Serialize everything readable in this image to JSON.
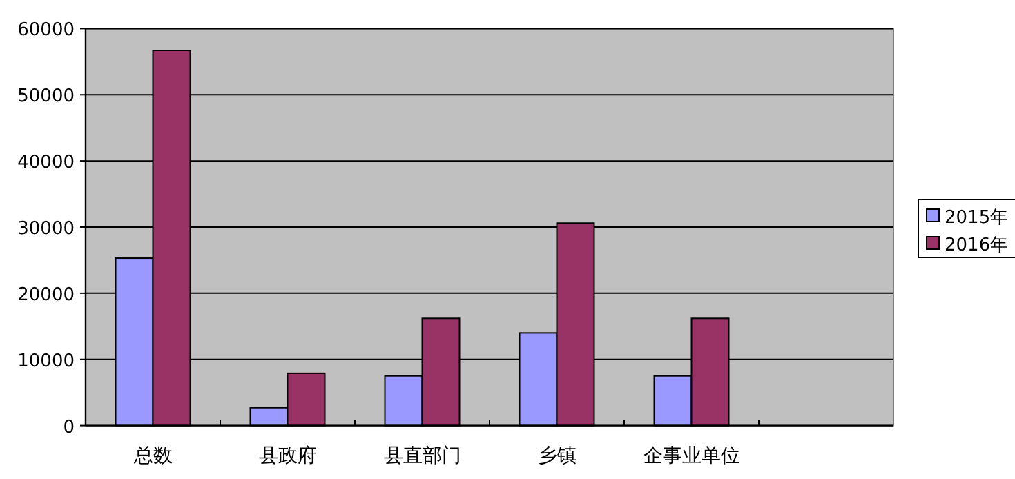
{
  "chart_data": {
    "type": "bar",
    "categories": [
      "总数",
      "县政府",
      "县直部门",
      "乡镇",
      "企事业单位",
      null
    ],
    "series": [
      {
        "name": "2015年",
        "color": "#9999ff",
        "values": [
          25300,
          2700,
          7500,
          14000,
          7500,
          null
        ]
      },
      {
        "name": "2016年",
        "color": "#993366",
        "values": [
          56700,
          7900,
          16200,
          30600,
          16200,
          null
        ]
      }
    ],
    "ylim": [
      0,
      60000
    ],
    "yticks": [
      0,
      10000,
      20000,
      30000,
      40000,
      50000,
      60000
    ],
    "grid": "y",
    "legend": "right"
  }
}
